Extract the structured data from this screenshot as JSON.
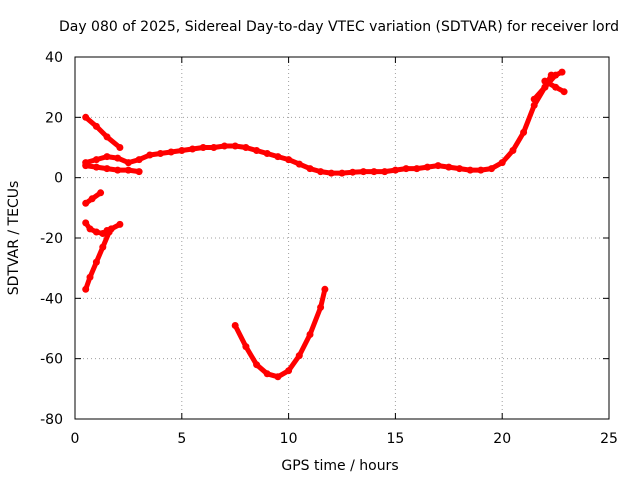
{
  "chart_data": {
    "type": "scatter",
    "title": "Day 080 of 2025, Sidereal Day-to-day VTEC variation (SDTVAR) for receiver lord",
    "xlabel": "GPS time / hours",
    "ylabel": "SDTVAR / TECUs",
    "xlim": [
      0,
      25
    ],
    "ylim": [
      -80,
      40
    ],
    "xticks": [
      0,
      5,
      10,
      15,
      20,
      25
    ],
    "yticks": [
      -80,
      -60,
      -40,
      -20,
      0,
      20,
      40
    ],
    "xtick_labels": [
      "0",
      "5",
      "10",
      "15",
      "20",
      "25"
    ],
    "ytick_labels": [
      "-80",
      "-60",
      "-40",
      "-20",
      "0",
      "20",
      "40"
    ],
    "grid": true,
    "legend": "none",
    "series_color": "#ff0000",
    "series": [
      {
        "name": "main-trace",
        "x": [
          0.5,
          1.0,
          1.5,
          2.0,
          2.5,
          3.0,
          3.5,
          4.0,
          4.5,
          5.0,
          5.5,
          6.0,
          6.5,
          7.0,
          7.5,
          8.0,
          8.5,
          9.0,
          9.5,
          10.0,
          10.5,
          11.0,
          11.5,
          12.0,
          12.5,
          13.0,
          13.5,
          14.0,
          14.5,
          15.0,
          15.5,
          16.0,
          16.5,
          17.0,
          17.5,
          18.0,
          18.5,
          19.0,
          19.5,
          20.0,
          20.5,
          21.0,
          21.5,
          22.0,
          22.3
        ],
        "y": [
          5,
          6,
          7,
          6.5,
          5,
          6,
          7.5,
          8,
          8.5,
          9,
          9.5,
          10,
          10,
          10.5,
          10.5,
          10,
          9,
          8,
          7,
          6,
          4.5,
          3,
          2,
          1.5,
          1.5,
          1.8,
          2,
          2,
          2,
          2.5,
          3,
          3,
          3.5,
          4,
          3.5,
          3,
          2.5,
          2.5,
          3,
          5,
          9,
          15,
          24,
          30,
          34
        ]
      },
      {
        "name": "upper-branch",
        "x": [
          0.5,
          1.0,
          1.5,
          2.0,
          2.5,
          3.0
        ],
        "y": [
          4,
          3.5,
          3,
          2.5,
          2.5,
          2
        ]
      },
      {
        "name": "end-branch",
        "x": [
          21.5,
          22.0,
          22.5,
          22.8
        ],
        "y": [
          26,
          30,
          34,
          35
        ]
      },
      {
        "name": "end-tail",
        "x": [
          22.0,
          22.5,
          22.9
        ],
        "y": [
          32,
          30,
          28.5
        ]
      },
      {
        "name": "short-upper-segment",
        "x": [
          0.5,
          1.0,
          1.5,
          2.1
        ],
        "y": [
          20,
          17,
          13.5,
          10
        ]
      },
      {
        "name": "short-segment",
        "x": [
          0.5,
          0.8,
          1.2
        ],
        "y": [
          -8.5,
          -7,
          -5
        ]
      },
      {
        "name": "left-low-branch",
        "x": [
          0.5,
          0.7,
          1.0,
          1.3,
          1.5,
          1.7,
          2.1
        ],
        "y": [
          -15,
          -17,
          -18,
          -18.5,
          -17.5,
          -17,
          -15.5
        ]
      },
      {
        "name": "left-dip",
        "x": [
          0.5,
          0.7,
          1.0,
          1.3,
          1.6
        ],
        "y": [
          -37,
          -33,
          -28,
          -23,
          -18
        ]
      },
      {
        "name": "u-curve",
        "x": [
          7.5,
          8.0,
          8.5,
          9.0,
          9.5,
          10.0,
          10.5,
          11.0,
          11.5,
          11.7
        ],
        "y": [
          -49,
          -56,
          -62,
          -65,
          -66,
          -64,
          -59,
          -52,
          -43,
          -37
        ]
      }
    ]
  }
}
